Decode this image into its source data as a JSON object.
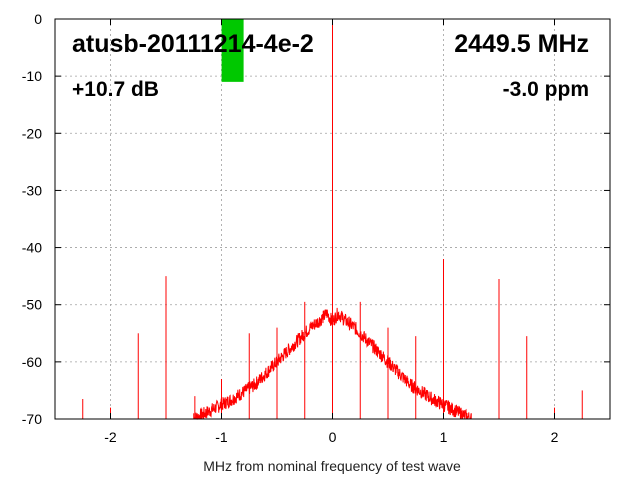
{
  "chart_data": {
    "type": "line",
    "title": "",
    "xlabel": "MHz from nominal frequency of test wave",
    "ylabel": "",
    "xlim": [
      -2.5,
      2.5
    ],
    "ylim": [
      -70,
      0
    ],
    "x_ticks": [
      -2,
      -1,
      0,
      1,
      2
    ],
    "y_ticks": [
      0,
      -10,
      -20,
      -30,
      -40,
      -50,
      -60,
      -70
    ],
    "grid": true,
    "series_color": "#ff0000",
    "indicator_color": "#00c800",
    "indicator": {
      "x": -0.9,
      "y_top": 0,
      "y_bottom": -11
    },
    "annotations": {
      "device": "atusb-20111214-4e-2",
      "frequency": "2449.5 MHz",
      "level": "+10.7 dB",
      "offset": "-3.0 ppm"
    },
    "spectrum_envelope": {
      "x": [
        -1.25,
        -1.1,
        -0.9,
        -0.7,
        -0.5,
        -0.35,
        -0.2,
        -0.1,
        -0.05,
        0,
        0.05,
        0.1,
        0.2,
        0.35,
        0.5,
        0.7,
        0.9,
        1.1,
        1.25
      ],
      "y": [
        -70,
        -68.5,
        -66.5,
        -64,
        -60,
        -57,
        -54,
        -52.5,
        -51.5,
        -53,
        -51.5,
        -52.5,
        -54,
        -57,
        -60,
        -64,
        -66.5,
        -68.5,
        -70
      ]
    },
    "spurs": [
      {
        "x": 0.0,
        "y": 0
      },
      {
        "x": -2.25,
        "y": -66.5
      },
      {
        "x": -2.0,
        "y": -68
      },
      {
        "x": -1.75,
        "y": -55
      },
      {
        "x": -1.5,
        "y": -45
      },
      {
        "x": -1.25,
        "y": -69
      },
      {
        "x": -1.24,
        "y": -66
      },
      {
        "x": -1.0,
        "y": -63
      },
      {
        "x": -0.75,
        "y": -55
      },
      {
        "x": -0.5,
        "y": -54
      },
      {
        "x": -0.25,
        "y": -49.5
      },
      {
        "x": 0.25,
        "y": -49.5
      },
      {
        "x": 0.5,
        "y": -54
      },
      {
        "x": 0.75,
        "y": -55.5
      },
      {
        "x": 1.0,
        "y": -42
      },
      {
        "x": 1.25,
        "y": -69
      },
      {
        "x": 1.5,
        "y": -45.5
      },
      {
        "x": 1.75,
        "y": -55.5
      },
      {
        "x": 2.0,
        "y": -68
      },
      {
        "x": 2.25,
        "y": -65
      }
    ]
  }
}
